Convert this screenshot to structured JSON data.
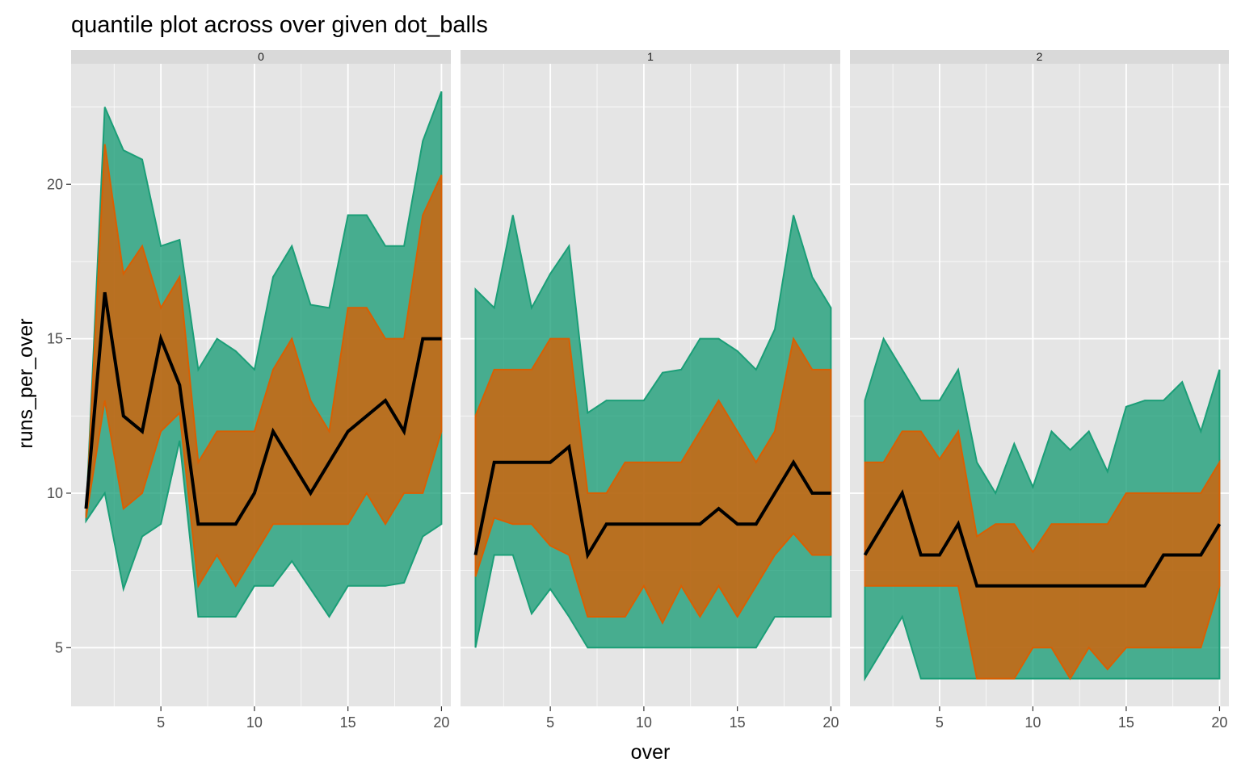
{
  "chart_data": {
    "type": "area",
    "title": "quantile plot across over given dot_balls",
    "xlabel": "over",
    "ylabel": "runs_per_over",
    "xlim": [
      0.2,
      20.5
    ],
    "ylim": [
      3.1,
      23.9
    ],
    "x_ticks": [
      5,
      10,
      15,
      20
    ],
    "y_ticks": [
      5,
      10,
      15,
      20
    ],
    "grid": true,
    "legend": "none",
    "colors": {
      "panel_bg": "#e5e5e5",
      "grid": "#ffffff",
      "strip_bg": "#d9d9d9",
      "outer_band": "#1b9e77",
      "inner_band": "#d95f02",
      "median_line": "#000000"
    },
    "panels": [
      {
        "label": "0",
        "x": [
          1,
          2,
          3,
          4,
          5,
          6,
          7,
          8,
          9,
          10,
          11,
          12,
          13,
          14,
          15,
          16,
          17,
          18,
          19,
          20
        ],
        "outer_low": [
          9.1,
          10,
          6.9,
          8.6,
          9,
          11.7,
          6,
          6,
          6,
          7,
          7,
          7.8,
          6.9,
          6,
          7,
          7,
          7,
          7.1,
          8.6,
          9
        ],
        "outer_high": [
          9.3,
          22.5,
          21.1,
          20.8,
          18,
          18.2,
          14,
          15,
          14.6,
          14,
          17,
          18,
          16.1,
          16,
          19,
          19,
          18,
          18,
          21.4,
          23
        ],
        "inner_low": [
          9.2,
          13,
          9.5,
          10,
          12,
          12.6,
          7,
          8,
          7,
          8,
          9,
          9,
          9,
          9,
          9,
          10,
          9,
          10,
          10,
          12
        ],
        "inner_high": [
          9.2,
          21.3,
          17.1,
          18,
          16,
          17,
          11,
          12,
          12,
          12,
          14,
          15,
          13,
          12,
          16,
          16,
          15,
          15,
          19,
          20.3
        ],
        "median": [
          9.5,
          16.5,
          12.5,
          12,
          15,
          13.5,
          9,
          9,
          9,
          10,
          12,
          11,
          10,
          11,
          12,
          12.5,
          13,
          12,
          15,
          15
        ]
      },
      {
        "label": "1",
        "x": [
          1,
          2,
          3,
          4,
          5,
          6,
          7,
          8,
          9,
          10,
          11,
          12,
          13,
          14,
          15,
          16,
          17,
          18,
          19,
          20
        ],
        "outer_low": [
          5,
          8,
          8,
          6.1,
          6.9,
          6,
          5,
          5,
          5,
          5,
          5,
          5,
          5,
          5,
          5,
          5,
          6,
          6,
          6,
          6
        ],
        "outer_high": [
          16.6,
          16,
          19,
          16,
          17.1,
          18,
          12.6,
          13,
          13,
          13,
          13.9,
          14,
          15,
          15,
          14.6,
          14,
          15.3,
          19,
          17,
          16
        ],
        "inner_low": [
          7.3,
          9.2,
          9,
          9,
          8.3,
          8,
          6,
          6,
          6,
          7,
          5.8,
          7,
          6,
          7,
          6,
          7,
          8,
          8.7,
          8,
          8
        ],
        "inner_high": [
          12.5,
          14,
          14,
          14,
          15,
          15,
          10,
          10,
          11,
          11,
          11,
          11,
          12,
          13,
          12,
          11,
          12,
          15,
          14,
          14
        ],
        "median": [
          8,
          11,
          11,
          11,
          11,
          11.5,
          8,
          9,
          9,
          9,
          9,
          9,
          9,
          9.5,
          9,
          9,
          10,
          11,
          10,
          10
        ]
      },
      {
        "label": "2",
        "x": [
          1,
          2,
          3,
          4,
          5,
          6,
          7,
          8,
          9,
          10,
          11,
          12,
          13,
          14,
          15,
          16,
          17,
          18,
          19,
          20
        ],
        "outer_low": [
          4,
          5,
          6,
          4,
          4,
          4,
          4,
          4,
          4,
          4,
          4,
          4,
          4,
          4,
          4,
          4,
          4,
          4,
          4,
          4
        ],
        "outer_high": [
          13,
          15,
          14,
          13,
          13,
          14,
          11,
          10,
          11.6,
          10.2,
          12,
          11.4,
          12,
          10.7,
          12.8,
          13,
          13,
          13.6,
          12,
          14
        ],
        "inner_low": [
          7,
          7,
          7,
          7,
          7,
          7,
          4,
          4,
          4,
          5,
          5,
          4,
          5,
          4.3,
          5,
          5,
          5,
          5,
          5,
          7
        ],
        "inner_high": [
          11,
          11,
          12,
          12,
          11.1,
          12,
          8.6,
          9,
          9,
          8.1,
          9,
          9,
          9,
          9,
          10,
          10,
          10,
          10,
          10,
          11
        ],
        "median": [
          8,
          9,
          10,
          8,
          8,
          9,
          7,
          7,
          7,
          7,
          7,
          7,
          7,
          7,
          7,
          7,
          8,
          8,
          8,
          9
        ]
      }
    ]
  }
}
